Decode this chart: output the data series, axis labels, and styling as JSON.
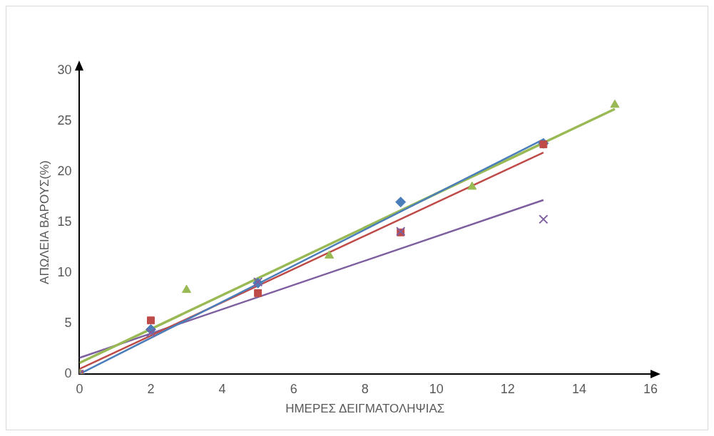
{
  "chart_data": {
    "type": "scatter",
    "xlabel": "ΗΜΕΡΕΣ ΔΕΙΓΜΑΤΟΛΗΨΙΑΣ",
    "ylabel": "ΑΠΩΛΕΙΑ ΒΑΡΟΥΣ(%)",
    "xlim": [
      0,
      16
    ],
    "xticks": [
      0,
      2,
      4,
      6,
      8,
      10,
      12,
      14,
      16
    ],
    "ylim": [
      0,
      30
    ],
    "yticks": [
      0,
      5,
      10,
      15,
      20,
      25,
      30
    ],
    "grid": false,
    "legend": false,
    "series": [
      {
        "type": "scatter",
        "marker": "diamond",
        "color": "#4a7ebb",
        "x": [
          0,
          2,
          5,
          9,
          13
        ],
        "values": [
          0,
          4.4,
          9,
          17,
          22.8
        ]
      },
      {
        "type": "scatter",
        "marker": "square",
        "color": "#be4b48",
        "x": [
          0,
          2,
          5,
          9,
          13
        ],
        "values": [
          0,
          5.3,
          8,
          14,
          22.7
        ]
      },
      {
        "type": "scatter",
        "marker": "triangle",
        "color": "#98b954",
        "x": [
          0,
          3,
          7,
          11,
          15
        ],
        "values": [
          0,
          8.3,
          11.7,
          18.5,
          26.6
        ]
      },
      {
        "type": "scatter",
        "marker": "cross",
        "color": "#7d5fa0",
        "x": [
          0,
          2,
          5,
          9,
          13
        ],
        "values": [
          0,
          4.1,
          9.1,
          14.1,
          15.3
        ]
      },
      {
        "type": "line",
        "marker": "none",
        "color": "#4a7ebb",
        "x": [
          0,
          13
        ],
        "values": [
          0,
          23.2
        ]
      },
      {
        "type": "line",
        "marker": "none",
        "color": "#be4b48",
        "x": [
          0,
          13
        ],
        "values": [
          0.5,
          21.9
        ]
      },
      {
        "type": "line",
        "marker": "none",
        "color": "#98b954",
        "x": [
          0,
          15
        ],
        "values": [
          1.1,
          26.2
        ]
      },
      {
        "type": "line",
        "marker": "none",
        "color": "#7d5fa0",
        "x": [
          0,
          13
        ],
        "values": [
          1.6,
          17.2
        ]
      }
    ]
  }
}
